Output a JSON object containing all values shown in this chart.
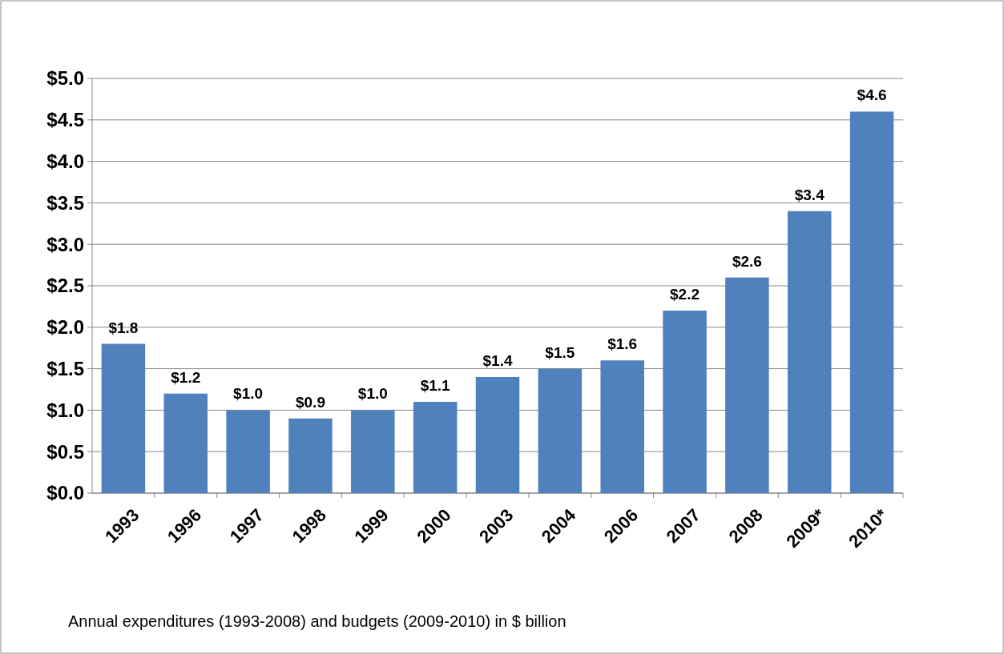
{
  "chart_data": {
    "type": "bar",
    "categories": [
      "1993",
      "1996",
      "1997",
      "1998",
      "1999",
      "2000",
      "2003",
      "2004",
      "2006",
      "2007",
      "2008",
      "2009*",
      "2010*"
    ],
    "values": [
      1.8,
      1.2,
      1.0,
      0.9,
      1.0,
      1.1,
      1.4,
      1.5,
      1.6,
      2.2,
      2.6,
      3.4,
      4.6
    ],
    "value_labels": [
      "$1.8",
      "$1.2",
      "$1.0",
      "$0.9",
      "$1.0",
      "$1.1",
      "$1.4",
      "$1.5",
      "$1.6",
      "$2.2",
      "$2.6",
      "$3.4",
      "$4.6"
    ],
    "color": "#4f81bd",
    "ylim": [
      0,
      5
    ],
    "yticks": [
      {
        "value": 0,
        "label": "$0.0"
      },
      {
        "value": 0.5,
        "label": "$0.5"
      },
      {
        "value": 1,
        "label": "$1.0"
      },
      {
        "value": 1.5,
        "label": "$1.5"
      },
      {
        "value": 2,
        "label": "$2.0"
      },
      {
        "value": 2.5,
        "label": "$2.5"
      },
      {
        "value": 3,
        "label": "$3.0"
      },
      {
        "value": 3.5,
        "label": "$3.5"
      },
      {
        "value": 4,
        "label": "$4.0"
      },
      {
        "value": 4.5,
        "label": "$4.5"
      },
      {
        "value": 5,
        "label": "$5.0"
      }
    ],
    "grid": "y",
    "annotations": [
      "Annual  expenditures (1993-2008) and budgets (2009-2010) in $ billion"
    ]
  }
}
